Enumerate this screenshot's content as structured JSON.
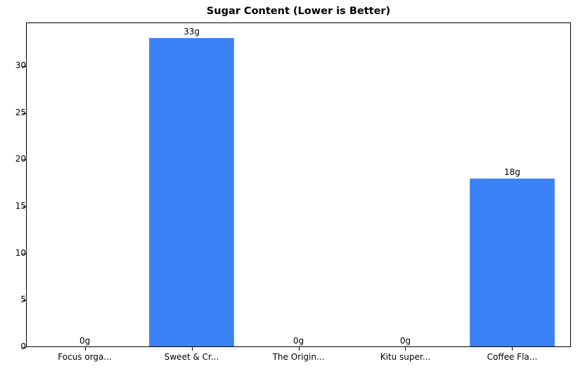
{
  "chart_data": {
    "type": "bar",
    "title": "Sugar Content (Lower is Better)",
    "xlabel": "",
    "ylabel": "",
    "categories": [
      "Focus orga...",
      "Sweet & Cr...",
      "The Origin...",
      "Kitu super...",
      "Coffee Fla..."
    ],
    "values": [
      0,
      33,
      0,
      0,
      18
    ],
    "data_labels": [
      "0g",
      "33g",
      "0g",
      "0g",
      "18g"
    ],
    "ylim": [
      0,
      34.65
    ],
    "yticks": [
      0,
      5,
      10,
      15,
      20,
      25,
      30
    ],
    "grid": false,
    "legend": null,
    "bar_color": "#3b82f6"
  }
}
